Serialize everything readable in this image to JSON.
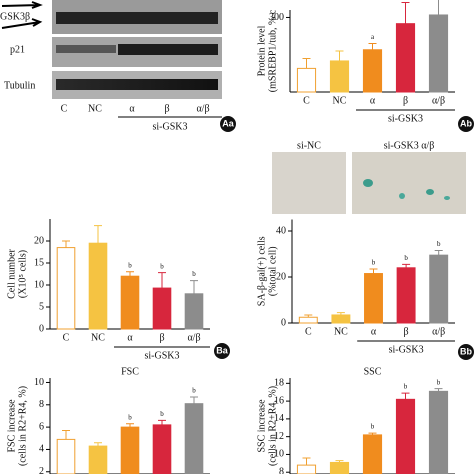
{
  "blot": {
    "labels": [
      "GSK3β",
      "p21",
      "Tubulin"
    ],
    "categories": [
      "C",
      "NC",
      "α",
      "β",
      "α/β"
    ],
    "group_label": "si-GSK3",
    "panel_label": "Aa"
  },
  "micrographs": {
    "labels": [
      "si-NC",
      "si-GSK3 α/β"
    ]
  },
  "chart_data": [
    {
      "type": "bar",
      "panel_label": "Ab",
      "y_label": [
        "Protein level",
        "(mSREBP1/tub, % c"
      ],
      "categories": [
        "C",
        "NC",
        "α",
        "β",
        "α/β"
      ],
      "values": [
        95,
        125,
        170,
        275,
        310
      ],
      "errors": [
        40,
        40,
        25,
        85,
        80
      ],
      "sig": [
        null,
        null,
        "a",
        null,
        null
      ],
      "colors": [
        "#ffffff",
        "#f5c342",
        "#f08c1e",
        "#d7263d",
        "#8c8c8c"
      ],
      "group_label": "si-GSK3",
      "ylim": [
        0,
        330
      ],
      "yticks": [
        300
      ]
    },
    {
      "type": "bar",
      "panel_label": "Ba",
      "y_label": [
        "Cell number",
        "(X10⁵ cells)"
      ],
      "categories": [
        "C",
        "NC",
        "α",
        "β",
        "α/β"
      ],
      "values": [
        18.5,
        19.5,
        12,
        9.3,
        8
      ],
      "errors": [
        1.5,
        4,
        1,
        3.5,
        3
      ],
      "sig": [
        null,
        null,
        "b",
        "b",
        "b"
      ],
      "colors": [
        "#ffffff",
        "#f5c342",
        "#f08c1e",
        "#d7263d",
        "#8c8c8c"
      ],
      "group_label": "si-GSK3",
      "ylim": [
        0,
        25
      ],
      "yticks": [
        0,
        5,
        10,
        15,
        20
      ]
    },
    {
      "type": "bar",
      "panel_label": "Bb",
      "y_label": [
        "SA-β-gal(+) cells",
        "(%total cell)"
      ],
      "categories": [
        "C",
        "NC",
        "α",
        "β",
        "α/β"
      ],
      "values": [
        2.5,
        3.5,
        21.5,
        24,
        29.5
      ],
      "errors": [
        1,
        1,
        2,
        1.5,
        2
      ],
      "sig": [
        null,
        null,
        "b",
        "b",
        "b"
      ],
      "colors": [
        "#ffffff",
        "#f5c342",
        "#f08c1e",
        "#d7263d",
        "#8c8c8c"
      ],
      "group_label": "si-GSK3",
      "ylim": [
        0,
        45
      ],
      "yticks": [
        0,
        20,
        40
      ]
    },
    {
      "type": "bar",
      "title": "FSC",
      "y_label": [
        "FSC increase",
        "(cells in R2+R4, %)"
      ],
      "categories": [
        "C",
        "NC",
        "α",
        "β",
        "α/β"
      ],
      "values": [
        4.9,
        4.3,
        6.0,
        6.2,
        8.1
      ],
      "errors": [
        0.8,
        0.3,
        0.3,
        0.4,
        0.6
      ],
      "sig": [
        null,
        null,
        "b",
        "b",
        "b"
      ],
      "colors": [
        "#ffffff",
        "#f5c342",
        "#f08c1e",
        "#d7263d",
        "#8c8c8c"
      ],
      "ylim": [
        1.8,
        10.4
      ],
      "yticks": [
        2,
        4,
        6,
        8,
        10
      ]
    },
    {
      "type": "bar",
      "title": "SSC",
      "y_label": [
        "SSC increase",
        "(cells in R2+R4, %)"
      ],
      "categories": [
        "C",
        "NC",
        "α",
        "β",
        "α/β"
      ],
      "values": [
        8.8,
        9.1,
        12.2,
        16.2,
        17.1
      ],
      "errors": [
        0.8,
        0.2,
        0.2,
        0.7,
        0.3
      ],
      "sig": [
        null,
        null,
        "b",
        "b",
        "b"
      ],
      "colors": [
        "#ffffff",
        "#f5c342",
        "#f08c1e",
        "#d7263d",
        "#8c8c8c"
      ],
      "ylim": [
        7.8,
        18.6
      ],
      "yticks": [
        8,
        10,
        12,
        14,
        16,
        18
      ]
    }
  ]
}
